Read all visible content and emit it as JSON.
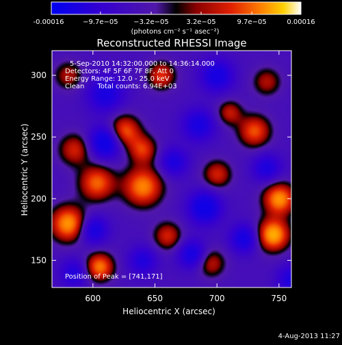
{
  "chart_data": {
    "type": "heatmap",
    "title": "Reconstructed RHESSI Image",
    "xlabel": "Heliocentric X (arcsec)",
    "ylabel": "Heliocentric Y (arcsec)",
    "xlim": [
      567,
      760
    ],
    "ylim": [
      128,
      320
    ],
    "x_ticks": [
      600,
      650,
      700,
      750
    ],
    "y_ticks": [
      150,
      200,
      250,
      300
    ],
    "colorbar": {
      "range": [
        -0.00016,
        0.00016
      ],
      "tick_values": [
        -0.00016,
        -9.7e-05,
        -3.2e-05,
        3.2e-05,
        9.7e-05,
        0.00016
      ],
      "tick_labels": [
        "-0.00016",
        "−9.7e−05",
        "−3.2e−05",
        "3.2e−05",
        "9.7e−05",
        "0.00016"
      ],
      "unit_label": "(photons cm⁻² s⁻¹ asec⁻²)"
    },
    "annotations": [
      "5-Sep-2010 14:32:00.000 to 14:36:14.000",
      "Detectors: 4F 5F 6F 7F 8F, Att 0",
      "Energy Range: 12.0 - 25.0 keV",
      "Clean      Total counts: 6.94E+03"
    ],
    "peak_label": "Position of Peak = [741,171]",
    "peak": [
      741,
      171
    ],
    "intensity_blobs": [
      {
        "x": 745,
        "y": 171,
        "v": 1.0,
        "s": 9
      },
      {
        "x": 580,
        "y": 180,
        "v": 0.92,
        "s": 10
      },
      {
        "x": 605,
        "y": 145,
        "v": 0.82,
        "s": 8
      },
      {
        "x": 640,
        "y": 210,
        "v": 0.85,
        "s": 11
      },
      {
        "x": 603,
        "y": 213,
        "v": 0.75,
        "s": 10
      },
      {
        "x": 585,
        "y": 240,
        "v": 0.55,
        "s": 9
      },
      {
        "x": 625,
        "y": 255,
        "v": 0.75,
        "s": 9
      },
      {
        "x": 640,
        "y": 240,
        "v": 0.6,
        "s": 8
      },
      {
        "x": 750,
        "y": 200,
        "v": 0.9,
        "s": 9
      },
      {
        "x": 730,
        "y": 255,
        "v": 0.7,
        "s": 9
      },
      {
        "x": 700,
        "y": 220,
        "v": 0.55,
        "s": 8
      },
      {
        "x": 695,
        "y": 148,
        "v": 0.5,
        "s": 8
      },
      {
        "x": 660,
        "y": 170,
        "v": 0.55,
        "s": 8
      },
      {
        "x": 655,
        "y": 300,
        "v": 0.6,
        "s": 8
      },
      {
        "x": 710,
        "y": 270,
        "v": 0.5,
        "s": 7
      },
      {
        "x": 580,
        "y": 300,
        "v": 0.45,
        "s": 8
      },
      {
        "x": 740,
        "y": 295,
        "v": 0.45,
        "s": 8
      },
      {
        "x": 610,
        "y": 246,
        "v": -0.8,
        "s": 9
      },
      {
        "x": 600,
        "y": 175,
        "v": -0.6,
        "s": 8
      },
      {
        "x": 610,
        "y": 285,
        "v": -0.55,
        "s": 10
      },
      {
        "x": 690,
        "y": 193,
        "v": -0.75,
        "s": 9
      },
      {
        "x": 685,
        "y": 260,
        "v": -0.55,
        "s": 9
      },
      {
        "x": 700,
        "y": 300,
        "v": -0.6,
        "s": 9
      },
      {
        "x": 740,
        "y": 225,
        "v": -0.5,
        "s": 8
      },
      {
        "x": 722,
        "y": 168,
        "v": -0.6,
        "s": 8
      },
      {
        "x": 680,
        "y": 155,
        "v": -0.6,
        "s": 8
      },
      {
        "x": 760,
        "y": 135,
        "v": -0.5,
        "s": 8
      },
      {
        "x": 640,
        "y": 150,
        "v": -0.45,
        "s": 8
      },
      {
        "x": 665,
        "y": 230,
        "v": -0.5,
        "s": 8
      },
      {
        "x": 585,
        "y": 140,
        "v": -0.45,
        "s": 8
      }
    ]
  },
  "footer": {
    "date_stamp": "4-Aug-2013 11:27"
  }
}
